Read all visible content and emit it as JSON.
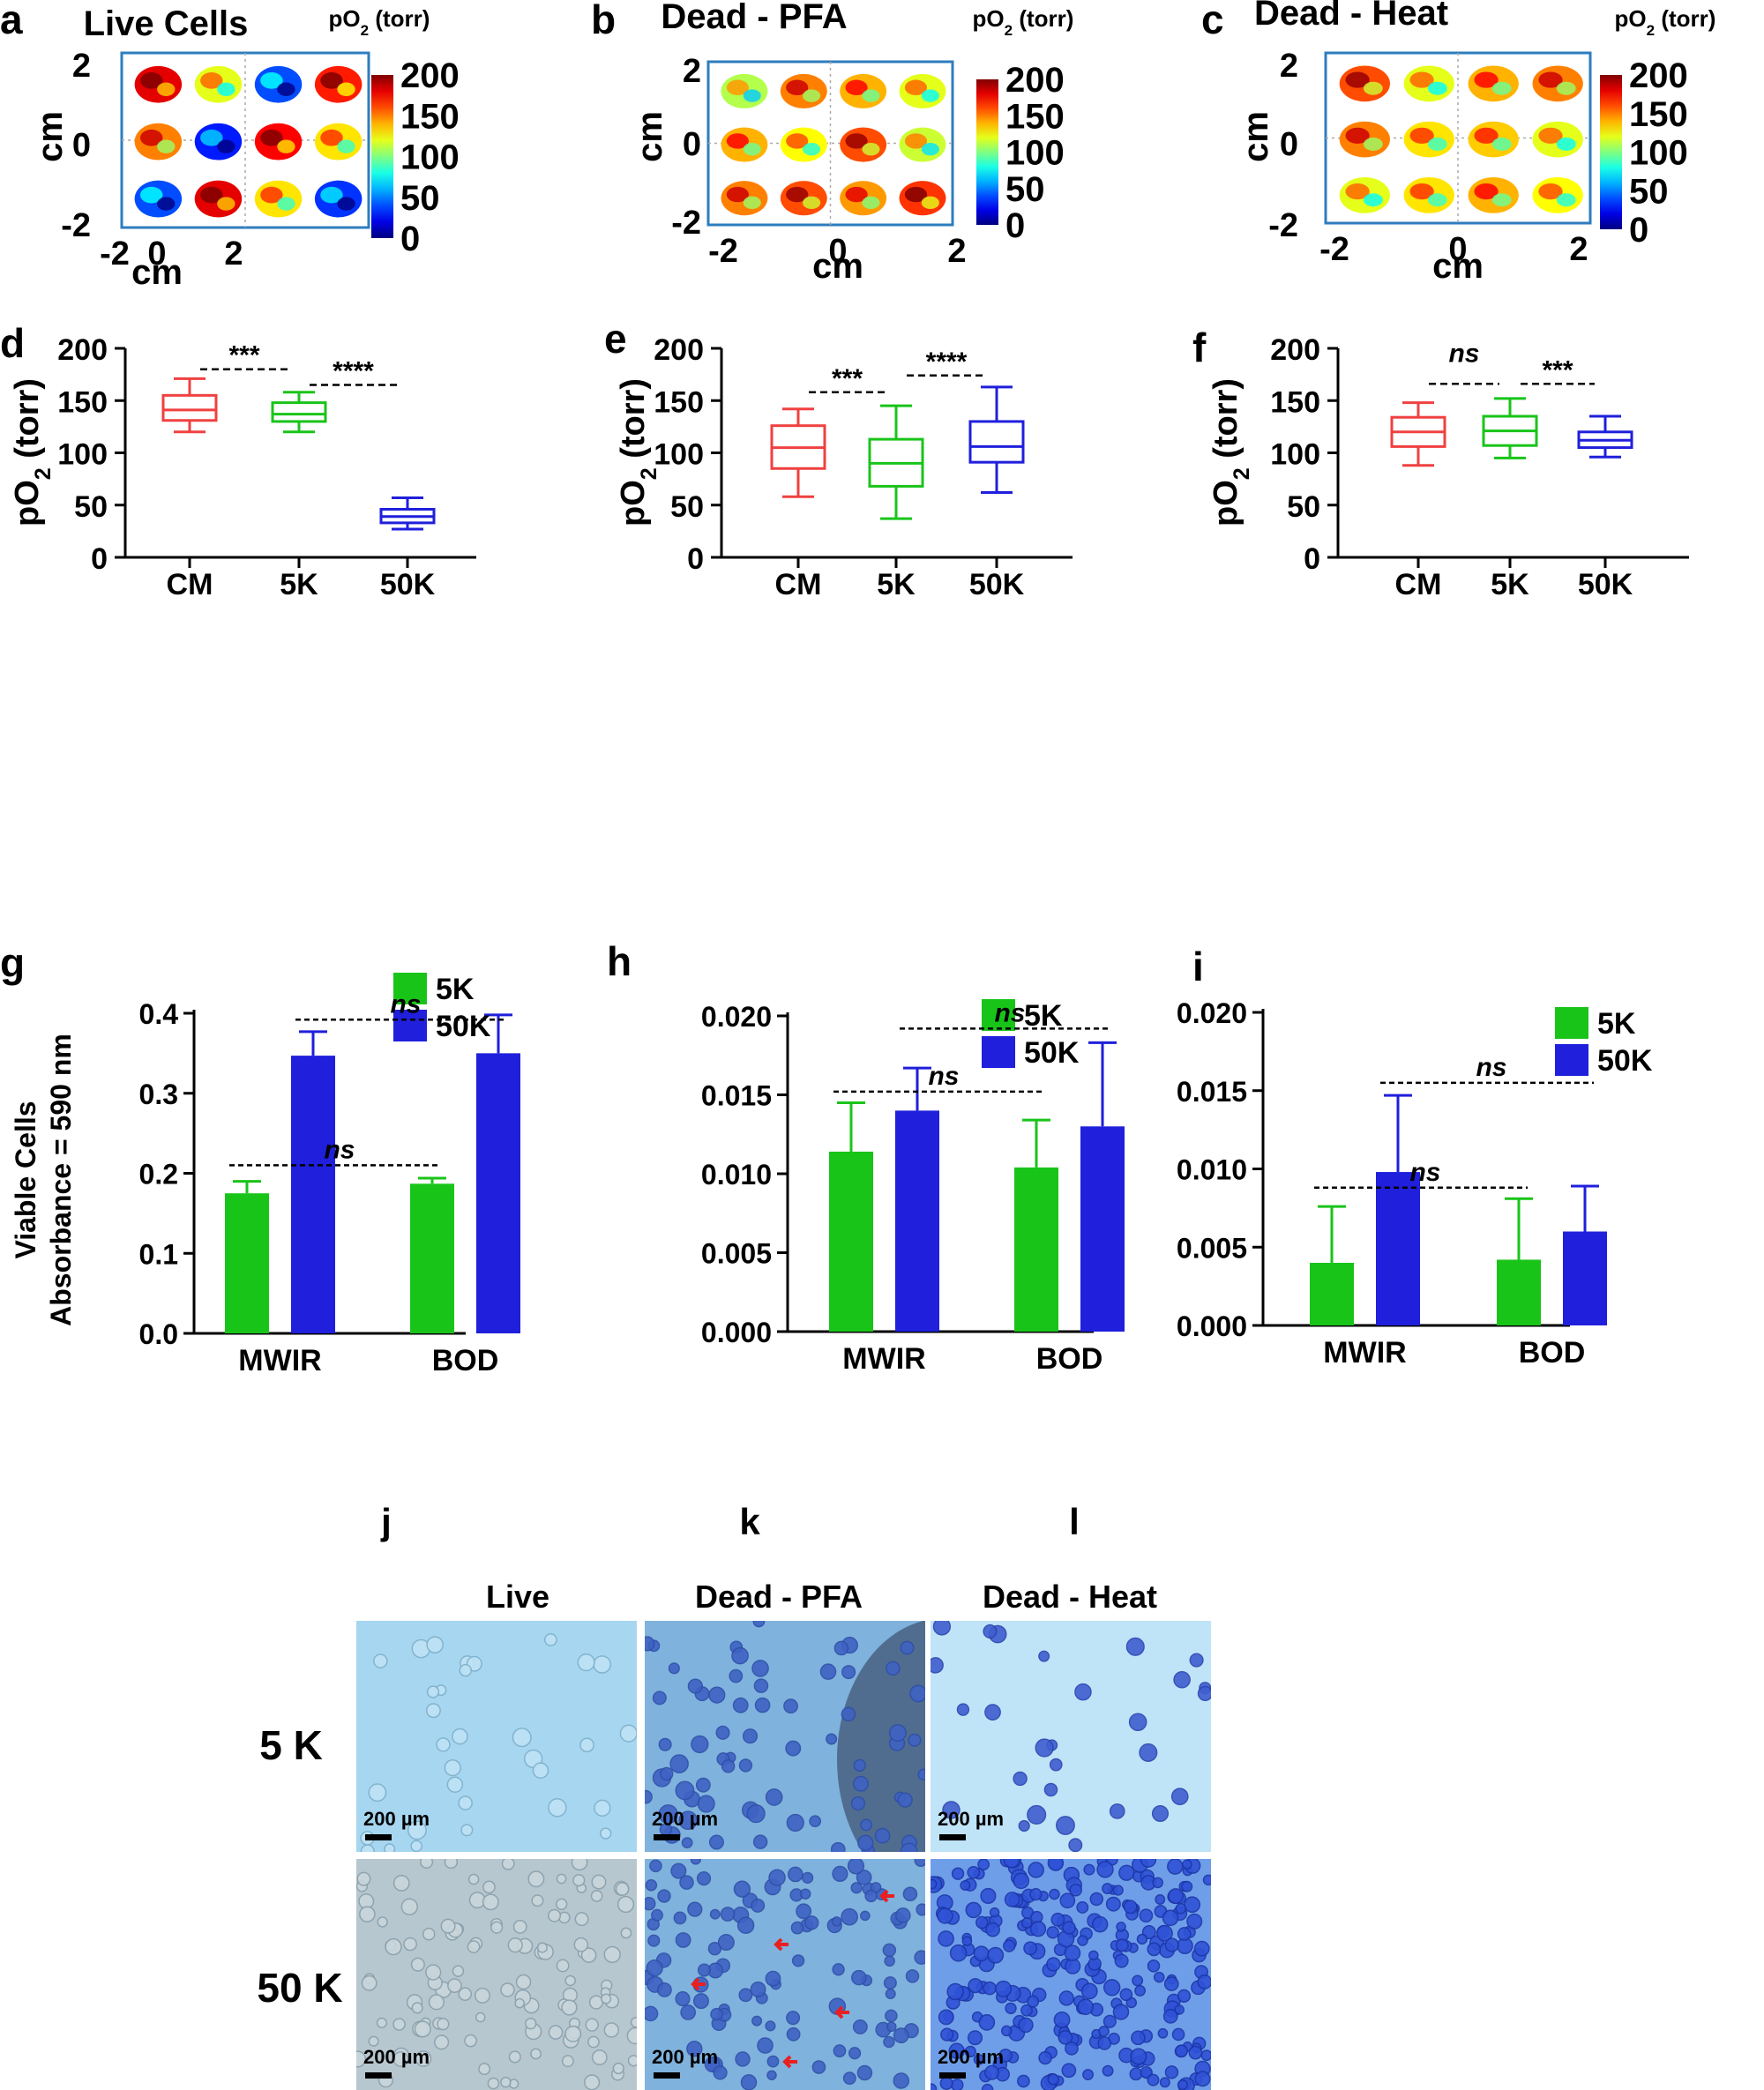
{
  "colors": {
    "red": "#f04040",
    "green": "#19c419",
    "blue": "#1f1fdc",
    "frame": "#2e7dbf",
    "micro_light": "#a6d6f0",
    "micro_mid": "#7fb2dc",
    "micro_dark": "#3f63c4",
    "micro_gray": "#b7c7d0",
    "arrow": "#e82020"
  },
  "colorbar": {
    "title_prefix": "pO",
    "title_sub": "2",
    "title_suffix": " (torr)",
    "ticks": [
      "200",
      "150",
      "100",
      "50",
      "0"
    ]
  },
  "maps": [
    {
      "letter": "a",
      "title": "Live Cells",
      "xlabel": "cm",
      "ylabel": "cm",
      "xticks": [
        "-2",
        "0",
        "2"
      ],
      "yticks": [
        "2",
        "0",
        "-2"
      ],
      "blob_levels": [
        [
          180,
          120,
          40,
          170
        ],
        [
          150,
          30,
          175,
          130
        ],
        [
          40,
          180,
          130,
          35
        ]
      ]
    },
    {
      "letter": "b",
      "title": "Dead - PFA",
      "xlabel": "cm",
      "ylabel": "cm",
      "xticks": [
        "-2",
        "0",
        "2"
      ],
      "yticks": [
        "2",
        "0",
        "-2"
      ],
      "blob_levels": [
        [
          110,
          150,
          140,
          120
        ],
        [
          140,
          125,
          160,
          115
        ],
        [
          150,
          160,
          145,
          165
        ]
      ]
    },
    {
      "letter": "c",
      "title": "Dead - Heat",
      "xlabel": "cm",
      "ylabel": "cm",
      "xticks": [
        "-2",
        "0",
        "2"
      ],
      "yticks": [
        "2",
        "0",
        "-2"
      ],
      "blob_levels": [
        [
          160,
          120,
          140,
          150
        ],
        [
          150,
          130,
          135,
          120
        ],
        [
          120,
          130,
          140,
          125
        ]
      ]
    }
  ],
  "chart_data": [
    {
      "panel": "d",
      "type": "box",
      "ylabel_prefix": "pO",
      "ylabel_sub": "2",
      "ylabel_suffix": " (torr)",
      "ylim": [
        0,
        200
      ],
      "yticks": [
        "0",
        "50",
        "100",
        "150",
        "200"
      ],
      "categories": [
        "CM",
        "5K",
        "50K"
      ],
      "boxes": [
        {
          "name": "CM",
          "min": 120,
          "q1": 131,
          "median": 141,
          "q3": 155,
          "max": 171
        },
        {
          "name": "5K",
          "min": 120,
          "q1": 130,
          "median": 137,
          "q3": 148,
          "max": 158
        },
        {
          "name": "50K",
          "min": 27,
          "q1": 33,
          "median": 39,
          "q3": 46,
          "max": 57
        }
      ],
      "annotations": [
        {
          "text": "***",
          "from": 0,
          "to": 1,
          "y": 180
        },
        {
          "text": "****",
          "from": 1,
          "to": 2,
          "y": 165
        }
      ]
    },
    {
      "panel": "e",
      "type": "box",
      "ylabel_prefix": "pO",
      "ylabel_sub": "2",
      "ylabel_suffix": " (torr)",
      "ylim": [
        0,
        200
      ],
      "yticks": [
        "0",
        "50",
        "100",
        "150",
        "200"
      ],
      "categories": [
        "CM",
        "5K",
        "50K"
      ],
      "boxes": [
        {
          "name": "CM",
          "min": 58,
          "q1": 85,
          "median": 105,
          "q3": 126,
          "max": 142
        },
        {
          "name": "5K",
          "min": 37,
          "q1": 68,
          "median": 90,
          "q3": 113,
          "max": 145
        },
        {
          "name": "50K",
          "min": 62,
          "q1": 91,
          "median": 106,
          "q3": 130,
          "max": 163
        }
      ],
      "annotations": [
        {
          "text": "***",
          "from": 0,
          "to": 1,
          "y": 158
        },
        {
          "text": "****",
          "from": 1,
          "to": 2,
          "y": 174
        }
      ]
    },
    {
      "panel": "f",
      "type": "box",
      "ylabel_prefix": "pO",
      "ylabel_sub": "2",
      "ylabel_suffix": " (torr)",
      "ylim": [
        0,
        200
      ],
      "yticks": [
        "0",
        "50",
        "100",
        "150",
        "200"
      ],
      "categories": [
        "CM",
        "5K",
        "50K"
      ],
      "boxes": [
        {
          "name": "CM",
          "min": 88,
          "q1": 106,
          "median": 120,
          "q3": 134,
          "max": 148
        },
        {
          "name": "5K",
          "min": 95,
          "q1": 107,
          "median": 121,
          "q3": 135,
          "max": 152
        },
        {
          "name": "50K",
          "min": 96,
          "q1": 105,
          "median": 112,
          "q3": 120,
          "max": 135
        }
      ],
      "annotations": [
        {
          "text": "ns",
          "from": 0,
          "to": 1,
          "y": 166,
          "italic": true,
          "label_y": 187
        },
        {
          "text": "***",
          "from": 1,
          "to": 2,
          "y": 166
        }
      ]
    },
    {
      "panel": "g",
      "type": "bar",
      "ylabel_line1": "Viable Cells",
      "ylabel_line2": "Absorbance = 590 nm",
      "ylim": [
        0,
        0.4
      ],
      "yticks": [
        "0.0",
        "0.1",
        "0.2",
        "0.3",
        "0.4"
      ],
      "categories": [
        "MWIR",
        "BOD"
      ],
      "series": [
        {
          "name": "5K",
          "values": [
            0.175,
            0.187
          ],
          "errors": [
            0.015,
            0.007
          ]
        },
        {
          "name": "50K",
          "values": [
            0.347,
            0.35
          ],
          "errors": [
            0.03,
            0.048
          ]
        }
      ],
      "annotations": [
        {
          "text": "ns",
          "series": "50K",
          "y": 0.392
        },
        {
          "text": "ns",
          "series": "5K",
          "y": 0.21
        }
      ]
    },
    {
      "panel": "h",
      "type": "bar",
      "ylim": [
        0,
        0.02
      ],
      "yticks": [
        "0.000",
        "0.005",
        "0.010",
        "0.015",
        "0.020"
      ],
      "categories": [
        "MWIR",
        "BOD"
      ],
      "series": [
        {
          "name": "5K",
          "values": [
            0.0114,
            0.0104
          ],
          "errors": [
            0.0031,
            0.003
          ]
        },
        {
          "name": "50K",
          "values": [
            0.014,
            0.013
          ],
          "errors": [
            0.0027,
            0.0053
          ]
        }
      ],
      "annotations": [
        {
          "text": "ns",
          "series": "50K",
          "y": 0.0192
        },
        {
          "text": "ns",
          "series": "mixed",
          "y": 0.0152
        }
      ]
    },
    {
      "panel": "i",
      "type": "bar",
      "ylim": [
        0,
        0.02
      ],
      "yticks": [
        "0.000",
        "0.005",
        "0.010",
        "0.015",
        "0.020"
      ],
      "categories": [
        "MWIR",
        "BOD"
      ],
      "series": [
        {
          "name": "5K",
          "values": [
            0.004,
            0.0042
          ],
          "errors": [
            0.0036,
            0.0039
          ]
        },
        {
          "name": "50K",
          "values": [
            0.0098,
            0.006
          ],
          "errors": [
            0.0049,
            0.0029
          ]
        }
      ],
      "annotations": [
        {
          "text": "ns",
          "series": "50K",
          "y": 0.0155
        },
        {
          "text": "ns",
          "series": "5K",
          "y": 0.0088
        }
      ]
    }
  ],
  "micrographs": {
    "letters": [
      "j",
      "k",
      "l"
    ],
    "columns": [
      "Live",
      "Dead - PFA",
      "Dead - Heat"
    ],
    "rows": [
      "5 K",
      "50 K"
    ],
    "scalebar": "200 µm"
  }
}
